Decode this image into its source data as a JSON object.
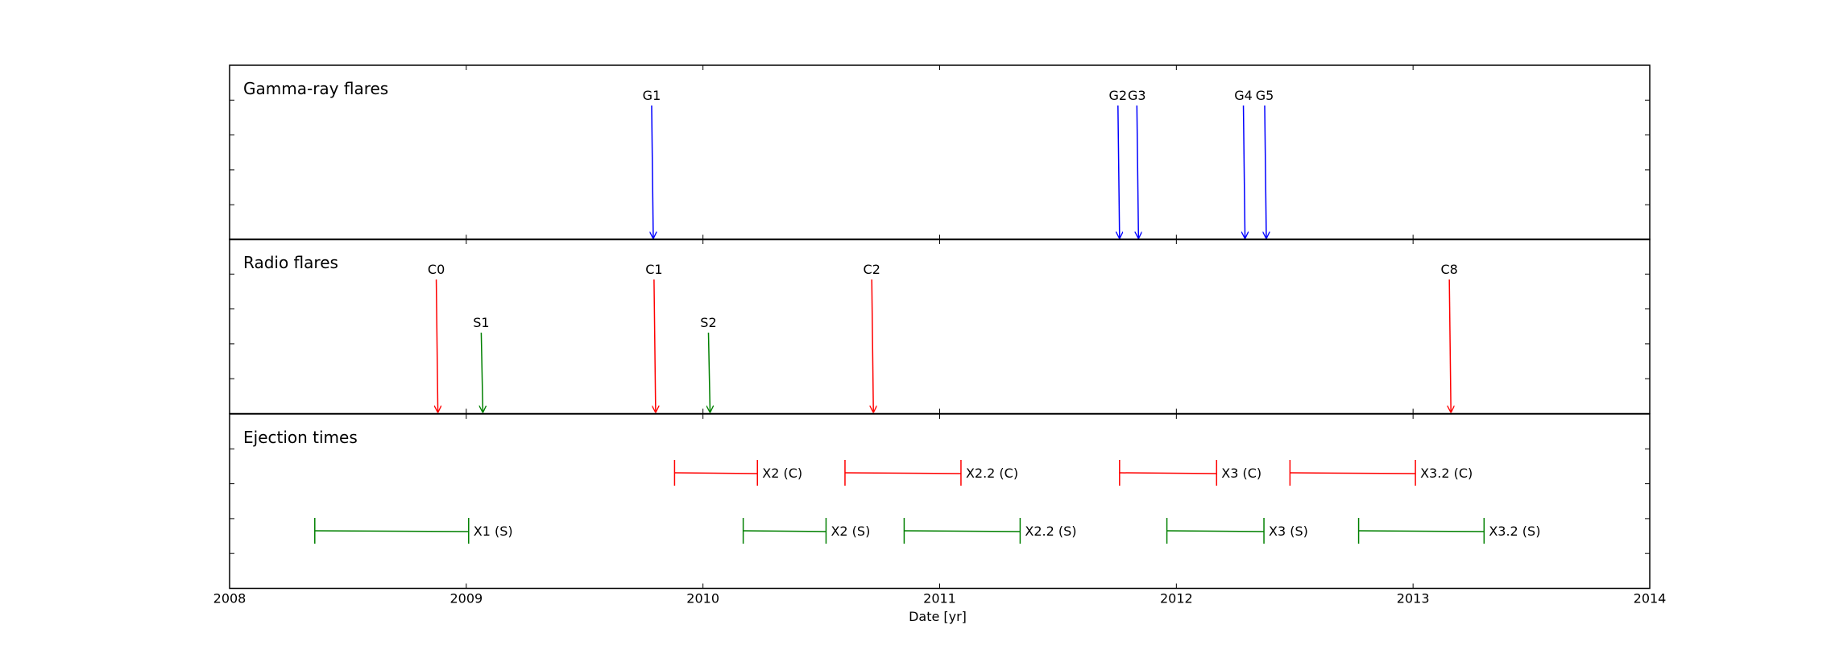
{
  "chart_data": {
    "type": "event-timeline",
    "xlabel": "Date [yr]",
    "xlim": [
      2008,
      2014
    ],
    "x_ticks": [
      2008,
      2009,
      2010,
      2011,
      2012,
      2013,
      2014
    ],
    "grid": false,
    "colors": {
      "gamma": "#0000ff",
      "core": "#ff0000",
      "stationary": "#008000"
    },
    "panels": [
      {
        "title": "Gamma-ray flares",
        "events": [
          {
            "label": "G1",
            "x": 2009.79,
            "level": "high",
            "color": "#0000ff"
          },
          {
            "label": "G2",
            "x": 2011.76,
            "level": "high",
            "color": "#0000ff"
          },
          {
            "label": "G3",
            "x": 2011.84,
            "level": "high",
            "color": "#0000ff"
          },
          {
            "label": "G4",
            "x": 2012.29,
            "level": "high",
            "color": "#0000ff"
          },
          {
            "label": "G5",
            "x": 2012.38,
            "level": "high",
            "color": "#0000ff"
          }
        ]
      },
      {
        "title": "Radio flares",
        "events": [
          {
            "label": "C0",
            "x": 2008.88,
            "level": "high",
            "color": "#ff0000"
          },
          {
            "label": "S1",
            "x": 2009.07,
            "level": "low",
            "color": "#008000"
          },
          {
            "label": "C1",
            "x": 2009.8,
            "level": "high",
            "color": "#ff0000"
          },
          {
            "label": "S2",
            "x": 2010.03,
            "level": "low",
            "color": "#008000"
          },
          {
            "label": "C2",
            "x": 2010.72,
            "level": "high",
            "color": "#ff0000"
          },
          {
            "label": "C8",
            "x": 2013.16,
            "level": "high",
            "color": "#ff0000"
          }
        ]
      },
      {
        "title": "Ejection times",
        "intervals": [
          {
            "label": "X2 (C)",
            "start": 2009.88,
            "end": 2010.23,
            "row": "upper",
            "color": "#ff0000"
          },
          {
            "label": "X2.2 (C)",
            "start": 2010.6,
            "end": 2011.09,
            "row": "upper",
            "color": "#ff0000"
          },
          {
            "label": "X3 (C)",
            "start": 2011.76,
            "end": 2012.17,
            "row": "upper",
            "color": "#ff0000"
          },
          {
            "label": "X3.2 (C)",
            "start": 2012.48,
            "end": 2013.01,
            "row": "upper",
            "color": "#ff0000"
          },
          {
            "label": "X1 (S)",
            "start": 2008.36,
            "end": 2009.01,
            "row": "lower",
            "color": "#008000"
          },
          {
            "label": "X2 (S)",
            "start": 2010.17,
            "end": 2010.52,
            "row": "lower",
            "color": "#008000"
          },
          {
            "label": "X2.2 (S)",
            "start": 2010.85,
            "end": 2011.34,
            "row": "lower",
            "color": "#008000"
          },
          {
            "label": "X3 (S)",
            "start": 2011.96,
            "end": 2012.37,
            "row": "lower",
            "color": "#008000"
          },
          {
            "label": "X3.2 (S)",
            "start": 2012.77,
            "end": 2013.3,
            "row": "lower",
            "color": "#008000"
          }
        ]
      }
    ]
  }
}
